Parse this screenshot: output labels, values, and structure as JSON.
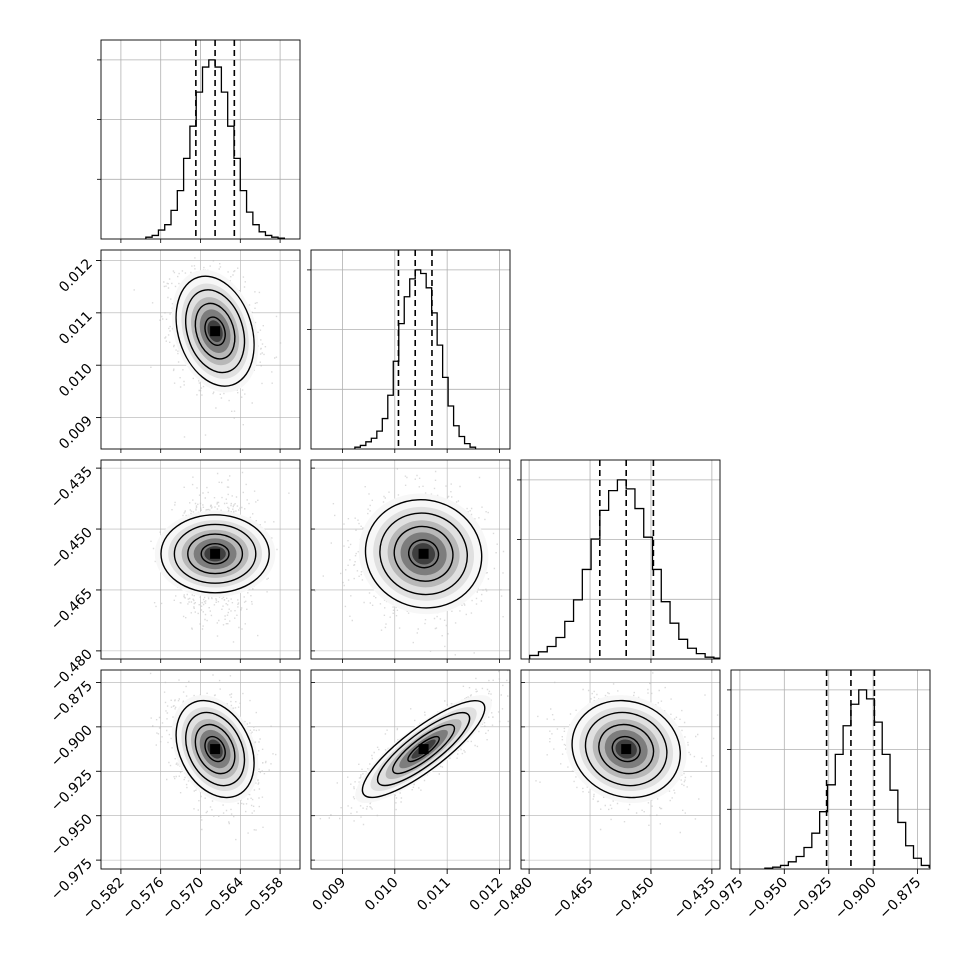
{
  "chart_data": {
    "type": "corner",
    "grid": true,
    "parameters": [
      {
        "index": 0,
        "range": [
          -0.585,
          -0.555
        ],
        "ticks": [
          -0.582,
          -0.576,
          -0.57,
          -0.564,
          -0.558
        ],
        "tick_labels": [
          "−0.582",
          "−0.576",
          "−0.570",
          "−0.564",
          "−0.558"
        ],
        "quantiles": [
          -0.5707,
          -0.5678,
          -0.5649
        ],
        "hist_counts": [
          1,
          2,
          5,
          8,
          16,
          27,
          45,
          63,
          82,
          96,
          100,
          96,
          82,
          63,
          45,
          27,
          15,
          8,
          4,
          2,
          1,
          0.5
        ]
      },
      {
        "index": 1,
        "range": [
          0.0084,
          0.0122
        ],
        "ticks": [
          0.009,
          0.01,
          0.011,
          0.012
        ],
        "tick_labels": [
          "0.009",
          "0.010",
          "0.011",
          "0.012"
        ],
        "quantiles": [
          0.01007,
          0.01039,
          0.01071
        ],
        "hist_counts": [
          1,
          2,
          4,
          6,
          10,
          17,
          30,
          49,
          70,
          85,
          95,
          100,
          98,
          90,
          76,
          58,
          40,
          24,
          13,
          7,
          3,
          1
        ]
      },
      {
        "index": 2,
        "range": [
          -0.482,
          -0.433
        ],
        "ticks": [
          -0.48,
          -0.465,
          -0.45,
          -0.435
        ],
        "tick_labels": [
          "−0.480",
          "−0.465",
          "−0.450",
          "−0.435"
        ],
        "quantiles": [
          -0.4626,
          -0.4561,
          -0.4494
        ],
        "hist_counts": [
          2,
          4,
          7,
          12,
          21,
          33,
          50,
          67,
          83,
          94,
          100,
          95,
          84,
          68,
          50,
          32,
          20,
          11,
          6,
          3,
          1,
          0.5
        ]
      },
      {
        "index": 3,
        "range": [
          -0.98,
          -0.868
        ],
        "ticks": [
          -0.975,
          -0.95,
          -0.925,
          -0.9,
          -0.875
        ],
        "tick_labels": [
          "−0.975",
          "−0.950",
          "−0.925",
          "−0.900",
          "−0.875"
        ],
        "quantiles": [
          -0.9262,
          -0.9125,
          -0.8993
        ],
        "hist_counts": [
          0.5,
          1,
          2,
          4,
          7,
          12,
          20,
          32,
          47,
          64,
          80,
          92,
          100,
          95,
          82,
          64,
          44,
          26,
          13,
          6,
          2,
          1
        ]
      }
    ],
    "pairs": [
      {
        "x": 0,
        "y": 1,
        "mean": [
          -0.5678,
          0.01065
        ],
        "sd": [
          0.0029,
          0.00052
        ],
        "corr": -0.25
      },
      {
        "x": 0,
        "y": 2,
        "mean": [
          -0.5678,
          -0.4561
        ],
        "sd": [
          0.0029,
          0.0066
        ],
        "corr": 0.0
      },
      {
        "x": 1,
        "y": 2,
        "mean": [
          0.01055,
          -0.4561
        ],
        "sd": [
          0.00055,
          0.0066
        ],
        "corr": -0.05
      },
      {
        "x": 0,
        "y": 3,
        "mean": [
          -0.5678,
          -0.9125
        ],
        "sd": [
          0.0029,
          0.0135
        ],
        "corr": -0.3
      },
      {
        "x": 1,
        "y": 3,
        "mean": [
          0.01055,
          -0.9125
        ],
        "sd": [
          0.00058,
          0.0135
        ],
        "corr": 0.85
      },
      {
        "x": 2,
        "y": 3,
        "mean": [
          -0.4561,
          -0.9125
        ],
        "sd": [
          0.0066,
          0.0135
        ],
        "corr": -0.1
      }
    ],
    "contour_levels_sigma": [
      0.5,
      1.0,
      1.5,
      2.0
    ],
    "colors": {
      "line": "#000000",
      "grid": "#b0b0b0",
      "scatter": "#bdbdbd"
    }
  }
}
